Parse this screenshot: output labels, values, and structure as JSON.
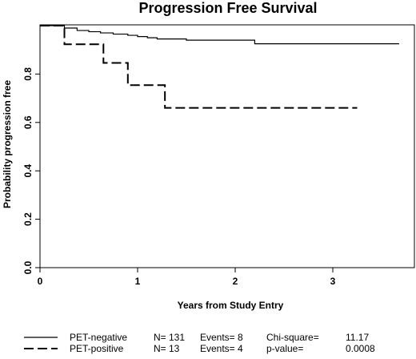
{
  "chart_data": {
    "type": "line",
    "title": "Progression Free Survival",
    "xlabel": "Years from Study Entry",
    "ylabel": "Probability progression free",
    "xlim": [
      0,
      3.8
    ],
    "ylim": [
      0,
      1.0
    ],
    "xticks": [
      0,
      1,
      2,
      3
    ],
    "xtick_labels": [
      "0",
      "1",
      "2",
      "3"
    ],
    "yticks": [
      0,
      0.2,
      0.4,
      0.6,
      0.8
    ],
    "ytick_labels": [
      "0.0",
      "0.2",
      "0.4",
      "0.6",
      "0.8"
    ],
    "series": [
      {
        "name": "PET-negative",
        "style": "solid",
        "x": [
          0,
          0.25,
          0.38,
          0.5,
          0.62,
          0.75,
          0.9,
          1.0,
          1.1,
          1.2,
          1.5,
          2.0,
          2.2,
          3.68
        ],
        "y": [
          1.0,
          0.99,
          0.98,
          0.975,
          0.97,
          0.965,
          0.96,
          0.955,
          0.95,
          0.945,
          0.94,
          0.94,
          0.925,
          0.925
        ]
      },
      {
        "name": "PET-positive",
        "style": "dashed",
        "x": [
          0,
          0.25,
          0.65,
          0.9,
          1.28,
          3.25
        ],
        "y": [
          1.0,
          0.923,
          0.846,
          0.754,
          0.66,
          0.66
        ]
      }
    ],
    "legend": {
      "placement": "bottom",
      "rows": [
        {
          "label": "PET-negative",
          "n": "N= 131",
          "events": "Events= 8",
          "stat_label": "Chi-square=",
          "stat_value": "11.17"
        },
        {
          "label": "PET-positive",
          "n": "N= 13",
          "events": "Events= 4",
          "stat_label": "p-value=",
          "stat_value": "0.0008"
        }
      ]
    },
    "grid": false
  }
}
